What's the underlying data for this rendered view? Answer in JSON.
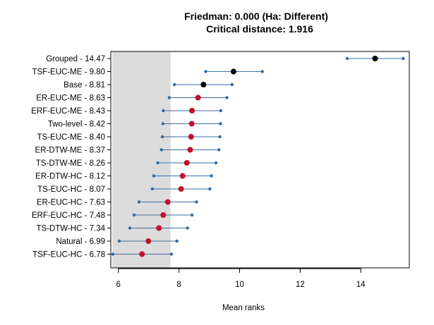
{
  "chart_data": {
    "type": "scatter",
    "title": "Friedman: 0.000 (Ha: Different)",
    "subtitle": "Critical distance: 1.916",
    "xlabel": "Mean ranks",
    "ylabel": "",
    "xlim": [
      5.75,
      15.6
    ],
    "xticks": [
      6,
      8,
      10,
      12,
      14
    ],
    "grid": false,
    "critical_region": [
      5.8,
      7.72
    ],
    "critical_region_color": "#dcdcdc",
    "colors": {
      "interval_line": "#3a6ea5",
      "endpoint": "#2e6aa5",
      "mean_red": "#c0122a",
      "mean_black": "#000000"
    },
    "items": [
      {
        "label": "Grouped - 14.47",
        "mean": 14.47,
        "low": 13.55,
        "high": 15.4,
        "mean_color": "black"
      },
      {
        "label": "TSF-EUC-ME - 9.80",
        "mean": 9.8,
        "low": 8.88,
        "high": 10.75,
        "mean_color": "black"
      },
      {
        "label": "Base - 8.81",
        "mean": 8.81,
        "low": 7.85,
        "high": 9.75,
        "mean_color": "black"
      },
      {
        "label": "ER-EUC-ME - 8.63",
        "mean": 8.63,
        "low": 7.68,
        "high": 9.58,
        "mean_color": "red"
      },
      {
        "label": "ERF-EUC-ME - 8.43",
        "mean": 8.43,
        "low": 7.48,
        "high": 9.38,
        "mean_color": "red"
      },
      {
        "label": "Two-level - 8.42",
        "mean": 8.42,
        "low": 7.47,
        "high": 9.37,
        "mean_color": "red"
      },
      {
        "label": "TS-EUC-ME - 8.40",
        "mean": 8.4,
        "low": 7.45,
        "high": 9.35,
        "mean_color": "red"
      },
      {
        "label": "ER-DTW-ME - 8.37",
        "mean": 8.37,
        "low": 7.42,
        "high": 9.32,
        "mean_color": "red"
      },
      {
        "label": "TS-DTW-ME - 8.26",
        "mean": 8.26,
        "low": 7.3,
        "high": 9.22,
        "mean_color": "red"
      },
      {
        "label": "ER-DTW-HC - 8.12",
        "mean": 8.12,
        "low": 7.17,
        "high": 9.07,
        "mean_color": "red"
      },
      {
        "label": "TS-EUC-HC - 8.07",
        "mean": 8.07,
        "low": 7.12,
        "high": 9.02,
        "mean_color": "red"
      },
      {
        "label": "ER-EUC-HC - 7.63",
        "mean": 7.63,
        "low": 6.68,
        "high": 8.58,
        "mean_color": "red"
      },
      {
        "label": "ERF-EUC-HC - 7.48",
        "mean": 7.48,
        "low": 6.52,
        "high": 8.43,
        "mean_color": "red"
      },
      {
        "label": "TS-DTW-HC - 7.34",
        "mean": 7.34,
        "low": 6.38,
        "high": 8.28,
        "mean_color": "red"
      },
      {
        "label": "Natural - 6.99",
        "mean": 6.99,
        "low": 6.03,
        "high": 7.93,
        "mean_color": "red"
      },
      {
        "label": "TSF-EUC-HC - 6.78",
        "mean": 6.78,
        "low": 5.82,
        "high": 7.75,
        "mean_color": "red"
      }
    ]
  }
}
